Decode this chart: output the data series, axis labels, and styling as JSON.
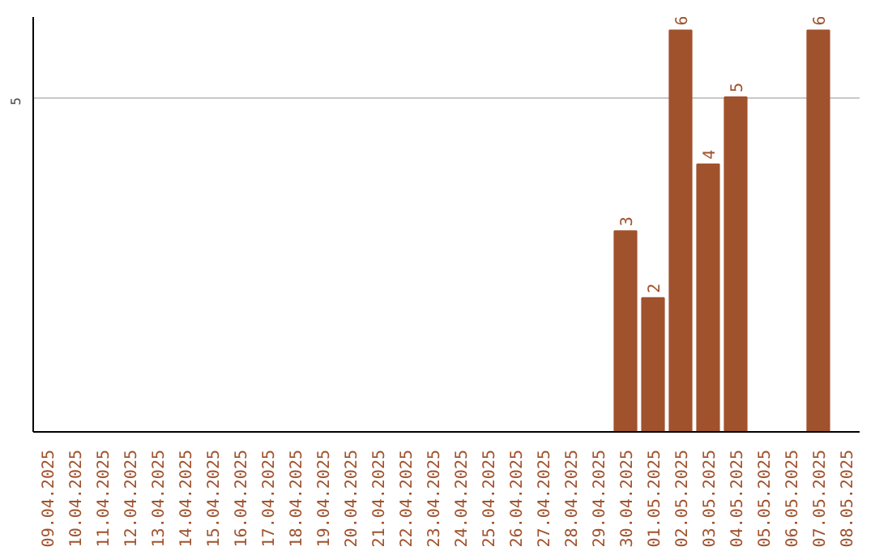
{
  "chart_data": {
    "type": "bar",
    "categories": [
      "09.04.2025",
      "10.04.2025",
      "11.04.2025",
      "12.04.2025",
      "13.04.2025",
      "14.04.2025",
      "15.04.2025",
      "16.04.2025",
      "17.04.2025",
      "18.04.2025",
      "19.04.2025",
      "20.04.2025",
      "21.04.2025",
      "22.04.2025",
      "23.04.2025",
      "24.04.2025",
      "25.04.2025",
      "26.04.2025",
      "27.04.2025",
      "28.04.2025",
      "29.04.2025",
      "30.04.2025",
      "01.05.2025",
      "02.05.2025",
      "03.05.2025",
      "04.05.2025",
      "05.05.2025",
      "06.05.2025",
      "07.05.2025",
      "08.05.2025"
    ],
    "values": [
      null,
      null,
      null,
      null,
      null,
      null,
      null,
      null,
      null,
      null,
      null,
      null,
      null,
      null,
      null,
      null,
      null,
      null,
      null,
      null,
      null,
      3,
      2,
      6,
      4,
      5,
      null,
      null,
      6,
      null
    ],
    "color": "#a0522d",
    "ylim": [
      0,
      6.2
    ],
    "yticks": [
      5
    ],
    "grid": "y",
    "data_labels": true
  }
}
